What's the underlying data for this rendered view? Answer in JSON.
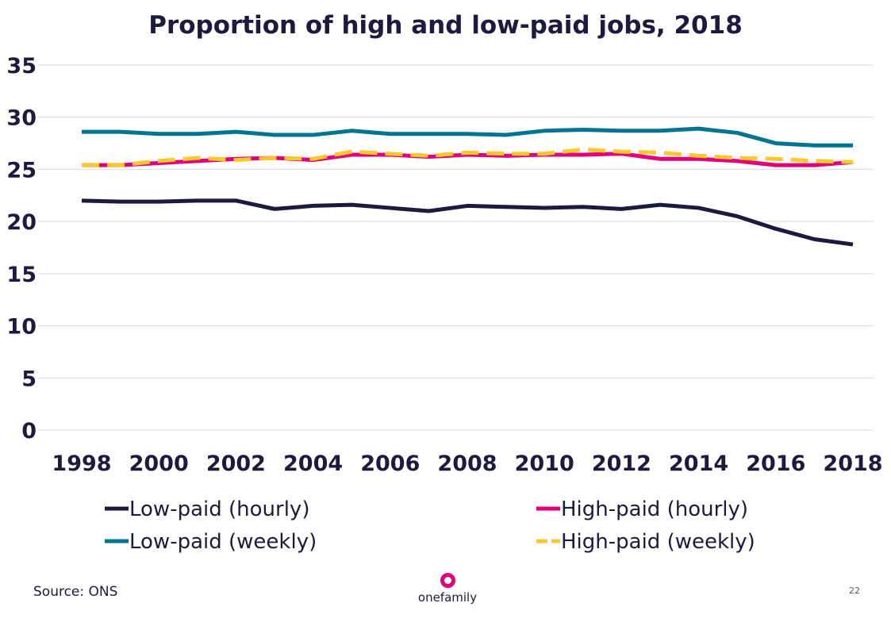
{
  "chart_data": {
    "type": "line",
    "title": "Proportion of high and low-paid jobs, 2018",
    "xlabel": "",
    "ylabel": "",
    "ylim": [
      0,
      35
    ],
    "yticks": [
      "0",
      "5",
      "10",
      "15",
      "20",
      "25",
      "30",
      "35"
    ],
    "xlim": [
      1998,
      2018
    ],
    "xticks": [
      "1998",
      "2000",
      "2002",
      "2004",
      "2006",
      "2008",
      "2010",
      "2012",
      "2014",
      "2016",
      "2018"
    ],
    "grid": true,
    "legend_position": "bottom",
    "x": [
      1998,
      1999,
      2000,
      2001,
      2002,
      2003,
      2004,
      2005,
      2006,
      2007,
      2008,
      2009,
      2010,
      2011,
      2012,
      2013,
      2014,
      2015,
      2016,
      2017,
      2018
    ],
    "series": [
      {
        "name": "Low-paid (hourly)",
        "color": "#1d1a3f",
        "dashed": false,
        "values": [
          22.0,
          21.9,
          21.9,
          22.0,
          22.0,
          21.2,
          21.5,
          21.6,
          21.3,
          21.0,
          21.5,
          21.4,
          21.3,
          21.4,
          21.2,
          21.6,
          21.3,
          20.5,
          19.3,
          18.3,
          17.8
        ]
      },
      {
        "name": "High-paid (hourly)",
        "color": "#e0007a",
        "dashed": false,
        "values": [
          25.4,
          25.4,
          25.6,
          25.8,
          26.0,
          26.1,
          25.9,
          26.4,
          26.4,
          26.2,
          26.4,
          26.3,
          26.4,
          26.4,
          26.5,
          26.0,
          26.0,
          25.8,
          25.4,
          25.4,
          25.7
        ]
      },
      {
        "name": "Low-paid (weekly)",
        "color": "#00758f",
        "dashed": false,
        "values": [
          28.6,
          28.6,
          28.4,
          28.4,
          28.6,
          28.3,
          28.3,
          28.7,
          28.4,
          28.4,
          28.4,
          28.3,
          28.7,
          28.8,
          28.7,
          28.7,
          28.9,
          28.5,
          27.5,
          27.3,
          27.3
        ]
      },
      {
        "name": "High-paid (weekly)",
        "color": "#fcc62d",
        "dashed": true,
        "values": [
          25.4,
          25.4,
          25.8,
          26.1,
          25.9,
          26.1,
          26.0,
          26.7,
          26.5,
          26.3,
          26.6,
          26.5,
          26.5,
          26.9,
          26.7,
          26.6,
          26.3,
          26.1,
          26.0,
          25.8,
          25.7
        ]
      }
    ]
  },
  "footer": {
    "source": "Source: ONS",
    "page_number": "22",
    "brand": "onefamily",
    "brand_color": "#e0007a"
  }
}
